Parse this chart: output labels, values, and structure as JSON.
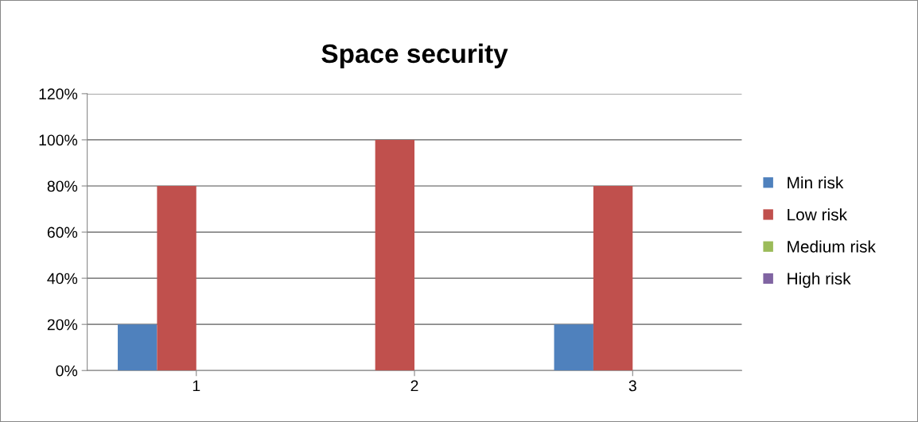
{
  "chart_data": {
    "type": "bar",
    "title": "Space security",
    "categories": [
      "1",
      "2",
      "3"
    ],
    "series": [
      {
        "name": "Min risk",
        "color": "#4f81bd",
        "values": [
          20,
          0,
          20
        ]
      },
      {
        "name": "Low risk",
        "color": "#c0504d",
        "values": [
          80,
          100,
          80
        ]
      },
      {
        "name": "Medium risk",
        "color": "#9bbb59",
        "values": [
          0,
          0,
          0
        ]
      },
      {
        "name": "High risk",
        "color": "#8064a2",
        "values": [
          0,
          0,
          0
        ]
      }
    ],
    "ylim": [
      0,
      120
    ],
    "yticks": [
      {
        "value": 0,
        "label": "0%"
      },
      {
        "value": 20,
        "label": "20%"
      },
      {
        "value": 40,
        "label": "40%"
      },
      {
        "value": 60,
        "label": "60%"
      },
      {
        "value": 80,
        "label": "80%"
      },
      {
        "value": 100,
        "label": "100%"
      },
      {
        "value": 120,
        "label": "120%"
      }
    ],
    "grid": "y",
    "legend": "right"
  }
}
